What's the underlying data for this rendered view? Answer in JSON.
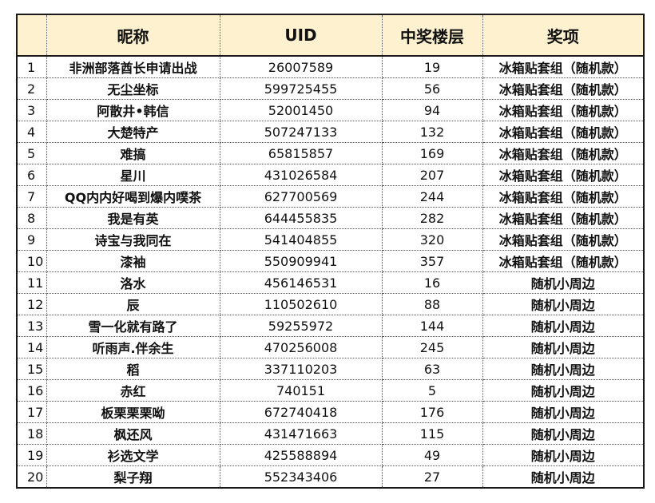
{
  "headers": {
    "index": "",
    "nickname": "昵称",
    "uid": "UID",
    "floor": "中奖楼层",
    "prize": "奖项"
  },
  "rows": [
    {
      "no": "1",
      "nickname": "非洲部落酋长申请出战",
      "uid": "26007589",
      "floor": "19",
      "prize": "冰箱贴套组（随机款）"
    },
    {
      "no": "2",
      "nickname": "无尘坐标",
      "uid": "599725455",
      "floor": "56",
      "prize": "冰箱贴套组（随机款）"
    },
    {
      "no": "3",
      "nickname": "阿散井•韩信",
      "uid": "52001450",
      "floor": "94",
      "prize": "冰箱贴套组（随机款）"
    },
    {
      "no": "4",
      "nickname": "大楚特产",
      "uid": "507247133",
      "floor": "132",
      "prize": "冰箱贴套组（随机款）"
    },
    {
      "no": "5",
      "nickname": "难搞",
      "uid": "65815857",
      "floor": "169",
      "prize": "冰箱贴套组（随机款）"
    },
    {
      "no": "6",
      "nickname": "星川",
      "uid": "431026584",
      "floor": "207",
      "prize": "冰箱贴套组（随机款）"
    },
    {
      "no": "7",
      "nickname": "QQ内内好喝到爆内噗茶",
      "uid": "627700569",
      "floor": "244",
      "prize": "冰箱贴套组（随机款）"
    },
    {
      "no": "8",
      "nickname": "我是有英",
      "uid": "644455835",
      "floor": "282",
      "prize": "冰箱贴套组（随机款）"
    },
    {
      "no": "9",
      "nickname": "诗宝与我同在",
      "uid": "541404855",
      "floor": "320",
      "prize": "冰箱贴套组（随机款）"
    },
    {
      "no": "10",
      "nickname": "漆袖",
      "uid": "550909941",
      "floor": "357",
      "prize": "冰箱贴套组（随机款）"
    },
    {
      "no": "11",
      "nickname": "洛水",
      "uid": "456146531",
      "floor": "16",
      "prize": "随机小周边"
    },
    {
      "no": "12",
      "nickname": "辰",
      "uid": "110502610",
      "floor": "88",
      "prize": "随机小周边"
    },
    {
      "no": "13",
      "nickname": "雪一化就有路了",
      "uid": "59255972",
      "floor": "144",
      "prize": "随机小周边"
    },
    {
      "no": "14",
      "nickname": "听雨声.伴余生",
      "uid": "470256008",
      "floor": "245",
      "prize": "随机小周边"
    },
    {
      "no": "15",
      "nickname": "稻",
      "uid": "337110203",
      "floor": "63",
      "prize": "随机小周边"
    },
    {
      "no": "16",
      "nickname": "赤红",
      "uid": "740151",
      "floor": "5",
      "prize": "随机小周边"
    },
    {
      "no": "17",
      "nickname": "板栗栗栗呦",
      "uid": "672740418",
      "floor": "176",
      "prize": "随机小周边"
    },
    {
      "no": "18",
      "nickname": "枫还风",
      "uid": "431471663",
      "floor": "115",
      "prize": "随机小周边"
    },
    {
      "no": "19",
      "nickname": "衫选文学",
      "uid": "425588894",
      "floor": "49",
      "prize": "随机小周边"
    },
    {
      "no": "20",
      "nickname": "梨子翔",
      "uid": "552343406",
      "floor": "27",
      "prize": "随机小周边"
    }
  ],
  "colors": {
    "header_bg": "#fdf1cf",
    "border": "#1a1a1a"
  }
}
